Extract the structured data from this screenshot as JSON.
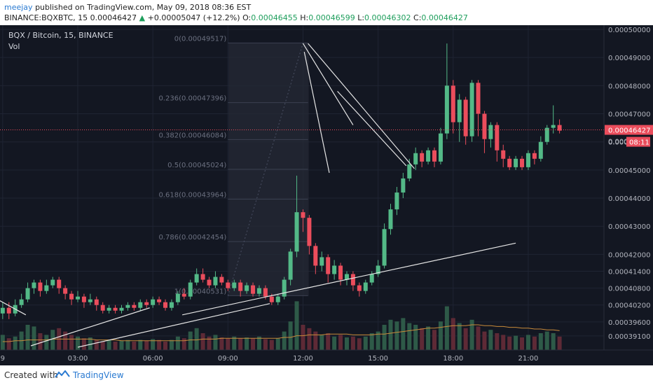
{
  "header": {
    "user": "meejay",
    "published": "published on TradingView.com, May 09, 2018 08:36 EST",
    "symbol": "BINANCE:BQXBTC, 15",
    "last": "0.00046427",
    "arrow": "▲",
    "change": "+0.00005047 (+12.2%)",
    "o_label": "O:",
    "o": "0.00046455",
    "h_label": "H:",
    "h": "0.00046599",
    "l_label": "L:",
    "l": "0.00046302",
    "c_label": "C:",
    "c": "0.00046427"
  },
  "legend": {
    "title": "BQX / Bitcoin, 15, BINANCE",
    "vol": "Vol"
  },
  "footer": {
    "created_with": "Created with",
    "brand": "TradingView"
  },
  "chart_data": {
    "type": "candlestick",
    "yrange": [
      0.000387,
      0.0005
    ],
    "y_ticks": [
      "0.00050000",
      "0.00049000",
      "0.00048000",
      "0.00047000",
      "0.00046000",
      "0.00045000",
      "0.00044000",
      "0.00043000",
      "0.00042000",
      "0.00041400",
      "0.00040800",
      "0.00040200",
      "0.00039600",
      "0.00039100"
    ],
    "y_tick_values": [
      0.0005,
      0.00049,
      0.00048,
      0.00047,
      0.00046,
      0.00045,
      0.00044,
      0.00043,
      0.00042,
      0.000414,
      0.000408,
      0.000402,
      0.000396,
      0.000391
    ],
    "x_ticks": [
      "21:00",
      "9",
      "03:00",
      "06:00",
      "09:00",
      "12:00",
      "15:00",
      "18:00",
      "21:00"
    ],
    "x_tick_bars": [
      -24,
      -12,
      0,
      12,
      24,
      36,
      48,
      60,
      72
    ],
    "price_label": "0.00046427",
    "price_label_partial": "0.000",
    "countdown": "08:11",
    "price_line": 0.00046427,
    "fib_levels": [
      {
        "label": "0(0.00049517)",
        "value": 0.00049517
      },
      {
        "label": "0.236(0.00047396)",
        "value": 0.00047396
      },
      {
        "label": "0.382(0.00046084)",
        "value": 0.00046084
      },
      {
        "label": "0.5(0.00045024)",
        "value": 0.00045024
      },
      {
        "label": "0.618(0.00043964)",
        "value": 0.00043964
      },
      {
        "label": "0.786(0.00042454)",
        "value": 0.00042454
      },
      {
        "label": "1(0.00040531)",
        "value": 0.00040531
      }
    ],
    "candles": [
      [
        0.000399,
        0.000401,
        0.000403,
        0.000397
      ],
      [
        0.000401,
        0.000399,
        0.000403,
        0.000397
      ],
      [
        0.000399,
        0.000402,
        0.000404,
        0.000398
      ],
      [
        0.000402,
        0.000404,
        0.000406,
        0.000401
      ],
      [
        0.000404,
        0.000408,
        0.00041,
        0.000403
      ],
      [
        0.000408,
        0.00041,
        0.000411,
        0.000406
      ],
      [
        0.00041,
        0.000407,
        0.000411,
        0.000405
      ],
      [
        0.000407,
        0.000409,
        0.000411,
        0.000406
      ],
      [
        0.000409,
        0.000411,
        0.000412,
        0.000408
      ],
      [
        0.000411,
        0.000408,
        0.000412,
        0.000406
      ],
      [
        0.000408,
        0.000406,
        0.000409,
        0.000404
      ],
      [
        0.000406,
        0.000404,
        0.000407,
        0.000402
      ],
      [
        0.000404,
        0.000405,
        0.000407,
        0.000403
      ],
      [
        0.000405,
        0.000403,
        0.000406,
        0.000401
      ],
      [
        0.000403,
        0.000404,
        0.000406,
        0.000402
      ],
      [
        0.000404,
        0.000402,
        0.000405,
        0.0004
      ],
      [
        0.000402,
        0.0004,
        0.000403,
        0.000399
      ],
      [
        0.0004,
        0.000401,
        0.000402,
        0.000399
      ],
      [
        0.000401,
        0.0004,
        0.000402,
        0.000399
      ],
      [
        0.0004,
        0.000401,
        0.000402,
        0.000399
      ],
      [
        0.000401,
        0.000402,
        0.000403,
        0.0004
      ],
      [
        0.000402,
        0.000401,
        0.000403,
        0.0004
      ],
      [
        0.000401,
        0.000403,
        0.000404,
        0.0004
      ],
      [
        0.000403,
        0.000402,
        0.000404,
        0.000401
      ],
      [
        0.000402,
        0.000404,
        0.000405,
        0.000401
      ],
      [
        0.000404,
        0.000403,
        0.000405,
        0.000402
      ],
      [
        0.000403,
        0.000401,
        0.000404,
        0.0004
      ],
      [
        0.000401,
        0.000403,
        0.000404,
        0.0004
      ],
      [
        0.000403,
        0.000406,
        0.000407,
        0.000402
      ],
      [
        0.000406,
        0.000405,
        0.000408,
        0.000404
      ],
      [
        0.000405,
        0.00041,
        0.000411,
        0.000404
      ],
      [
        0.00041,
        0.000413,
        0.000415,
        0.000409
      ],
      [
        0.000413,
        0.000411,
        0.000415,
        0.00041
      ],
      [
        0.000411,
        0.000409,
        0.000412,
        0.000408
      ],
      [
        0.000409,
        0.000412,
        0.000414,
        0.000408
      ],
      [
        0.000412,
        0.00041,
        0.000413,
        0.000409
      ],
      [
        0.00041,
        0.000408,
        0.000411,
        0.000407
      ],
      [
        0.000408,
        0.00041,
        0.000411,
        0.000407
      ],
      [
        0.00041,
        0.000407,
        0.000411,
        0.000405
      ],
      [
        0.000407,
        0.000409,
        0.00041,
        0.000406
      ],
      [
        0.000409,
        0.000406,
        0.00041,
        0.000405
      ],
      [
        0.000406,
        0.000408,
        0.000409,
        0.000405
      ],
      [
        0.000408,
        0.000405,
        0.000409,
        0.000404
      ],
      [
        0.000405,
        0.000403,
        0.000406,
        0.000402
      ],
      [
        0.000403,
        0.000405,
        0.000406,
        0.000402
      ],
      [
        0.000405,
        0.000411,
        0.000412,
        0.000404
      ],
      [
        0.000411,
        0.000421,
        0.000422,
        0.000409
      ],
      [
        0.000421,
        0.000435,
        0.000448,
        0.000419
      ],
      [
        0.000435,
        0.000433,
        0.000436,
        0.000428
      ],
      [
        0.000433,
        0.000423,
        0.000434,
        0.00042
      ],
      [
        0.000423,
        0.000416,
        0.000424,
        0.000413
      ],
      [
        0.000416,
        0.000419,
        0.000421,
        0.000414
      ],
      [
        0.000419,
        0.000413,
        0.00042,
        0.00041
      ],
      [
        0.000413,
        0.000416,
        0.000418,
        0.000411
      ],
      [
        0.000416,
        0.000411,
        0.000417,
        0.000409
      ],
      [
        0.000411,
        0.000413,
        0.000414,
        0.000409
      ],
      [
        0.000413,
        0.000409,
        0.000414,
        0.000407
      ],
      [
        0.000409,
        0.000407,
        0.00041,
        0.000405
      ],
      [
        0.000407,
        0.00041,
        0.000411,
        0.000406
      ],
      [
        0.00041,
        0.000413,
        0.000414,
        0.000409
      ],
      [
        0.000413,
        0.000416,
        0.000418,
        0.000412
      ],
      [
        0.000416,
        0.000429,
        0.000431,
        0.000415
      ],
      [
        0.000429,
        0.000436,
        0.000438,
        0.000427
      ],
      [
        0.000436,
        0.000442,
        0.000444,
        0.000434
      ],
      [
        0.000442,
        0.000447,
        0.000449,
        0.00044
      ],
      [
        0.000447,
        0.000452,
        0.000454,
        0.000446
      ],
      [
        0.000452,
        0.000456,
        0.000458,
        0.00045
      ],
      [
        0.000456,
        0.000453,
        0.000457,
        0.000451
      ],
      [
        0.000453,
        0.000457,
        0.000458,
        0.000452
      ],
      [
        0.000457,
        0.000453,
        0.000458,
        0.000451
      ],
      [
        0.000453,
        0.000463,
        0.000465,
        0.000452
      ],
      [
        0.000463,
        0.00048,
        0.000495,
        0.000461
      ],
      [
        0.00048,
        0.000467,
        0.000482,
        0.000463
      ],
      [
        0.000467,
        0.000475,
        0.000477,
        0.00046
      ],
      [
        0.000475,
        0.000462,
        0.000476,
        0.000459
      ],
      [
        0.000462,
        0.000481,
        0.000482,
        0.00046
      ],
      [
        0.000481,
        0.00047,
        0.000482,
        0.000462
      ],
      [
        0.00047,
        0.000461,
        0.000471,
        0.000456
      ],
      [
        0.000461,
        0.000466,
        0.000467,
        0.000458
      ],
      [
        0.000466,
        0.000457,
        0.000467,
        0.000453
      ],
      [
        0.000457,
        0.000454,
        0.000459,
        0.000451
      ],
      [
        0.000454,
        0.000451,
        0.000455,
        0.00045
      ],
      [
        0.000451,
        0.000454,
        0.000455,
        0.00045
      ],
      [
        0.000454,
        0.000451,
        0.000455,
        0.00045
      ],
      [
        0.000451,
        0.000456,
        0.000457,
        0.00045
      ],
      [
        0.000456,
        0.000454,
        0.000457,
        0.000452
      ],
      [
        0.000454,
        0.00046,
        0.000462,
        0.000453
      ],
      [
        0.00046,
        0.000465,
        0.000466,
        0.000459
      ],
      [
        0.000465,
        0.000466,
        0.000473,
        0.000463
      ],
      [
        0.000466,
        0.000464,
        0.000468,
        0.000463
      ]
    ],
    "volumes": [
      18,
      14,
      16,
      22,
      30,
      28,
      20,
      18,
      24,
      26,
      22,
      18,
      16,
      14,
      15,
      12,
      10,
      12,
      10,
      11,
      12,
      10,
      12,
      11,
      13,
      12,
      10,
      12,
      16,
      14,
      22,
      26,
      20,
      16,
      18,
      15,
      14,
      16,
      14,
      15,
      14,
      16,
      13,
      12,
      14,
      22,
      34,
      58,
      30,
      26,
      22,
      18,
      20,
      16,
      18,
      15,
      16,
      14,
      16,
      20,
      22,
      30,
      36,
      34,
      38,
      32,
      30,
      26,
      28,
      24,
      34,
      52,
      38,
      32,
      26,
      36,
      28,
      22,
      24,
      20,
      18,
      16,
      17,
      15,
      18,
      16,
      20,
      22,
      20,
      16
    ],
    "vol_ma": [
      10,
      10,
      11,
      11,
      12,
      12,
      12,
      12,
      13,
      13,
      13,
      13,
      13,
      13,
      13,
      12,
      12,
      12,
      12,
      11,
      11,
      11,
      11,
      11,
      11,
      11,
      11,
      11,
      11,
      11,
      12,
      12,
      13,
      13,
      13,
      14,
      14,
      14,
      14,
      14,
      14,
      14,
      14,
      14,
      14,
      15,
      15,
      17,
      17,
      18,
      18,
      18,
      19,
      19,
      19,
      19,
      18,
      18,
      18,
      18,
      19,
      19,
      20,
      21,
      22,
      23,
      24,
      25,
      26,
      26,
      27,
      28,
      29,
      29,
      29,
      30,
      30,
      29,
      29,
      28,
      28,
      27,
      27,
      26,
      26,
      25,
      25,
      24,
      24,
      23
    ]
  }
}
